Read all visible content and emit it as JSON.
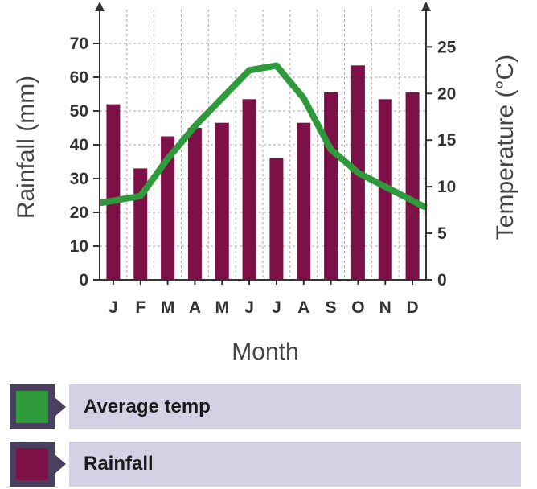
{
  "chart_data": {
    "type": "bar-line",
    "categories": [
      "J",
      "F",
      "M",
      "A",
      "M",
      "J",
      "J",
      "A",
      "S",
      "O",
      "N",
      "D"
    ],
    "series": [
      {
        "name": "Rainfall",
        "type": "bar",
        "axis": "left",
        "values": [
          52,
          33,
          42.5,
          45,
          46.5,
          53.5,
          36,
          46.5,
          55.5,
          63.5,
          53.5,
          55.5
        ]
      },
      {
        "name": "Average temp",
        "type": "line",
        "axis": "right",
        "values": [
          8.5,
          9,
          13,
          16.5,
          19.5,
          22.5,
          23,
          19.5,
          14,
          11.5,
          10,
          8.5
        ]
      }
    ],
    "xlabel": "Month",
    "ylabel_left": "Rainfall (mm)",
    "ylabel_right": "Temperature (°C)",
    "ylim_left": [
      0,
      80
    ],
    "yticks_left": [
      0,
      10,
      20,
      30,
      40,
      50,
      60,
      70
    ],
    "ylim_right": [
      0,
      29
    ],
    "yticks_right": [
      0,
      5,
      10,
      15,
      20,
      25
    ],
    "grid": true,
    "legend_position": "bottom",
    "colors": {
      "rainfall": "#7e1048",
      "temperature": "#2e9a3c",
      "grid": "#aaaaaa",
      "axis": "#333333",
      "legend_background": "#d3d1e3",
      "legend_frame": "#4a3f5e"
    }
  },
  "legend": {
    "items": [
      {
        "label": "Average temp",
        "color": "#2e9a3c"
      },
      {
        "label": "Rainfall",
        "color": "#7e1048"
      }
    ]
  }
}
